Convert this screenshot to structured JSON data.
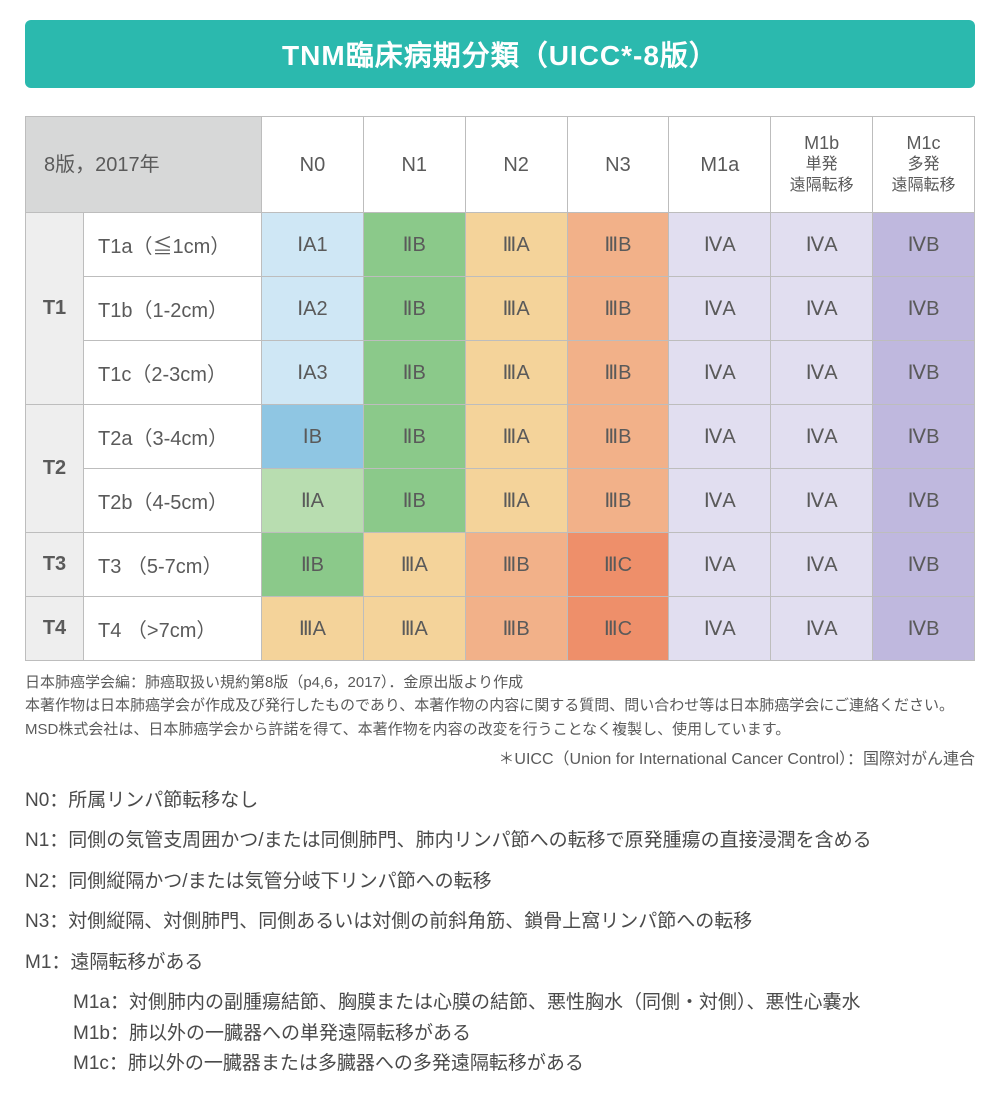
{
  "title": "TNM臨床病期分類（UICC*-8版）",
  "title_bg": "#2bb9ae",
  "corner_label": "8版，2017年",
  "columns": [
    {
      "key": "N0",
      "label": "N0",
      "sub": ""
    },
    {
      "key": "N1",
      "label": "N1",
      "sub": ""
    },
    {
      "key": "N2",
      "label": "N2",
      "sub": ""
    },
    {
      "key": "N3",
      "label": "N3",
      "sub": ""
    },
    {
      "key": "M1a",
      "label": "M1a",
      "sub": ""
    },
    {
      "key": "M1b",
      "label": "M1b",
      "sub": "単発\n遠隔転移"
    },
    {
      "key": "M1c",
      "label": "M1c",
      "sub": "多発\n遠隔転移"
    }
  ],
  "row_groups": [
    {
      "group": "T1",
      "rows": [
        {
          "label": "T1a（≦1cm）",
          "cells": [
            "ⅠA1",
            "ⅡB",
            "ⅢA",
            "ⅢB",
            "ⅣA",
            "ⅣA",
            "ⅣB"
          ]
        },
        {
          "label": "T1b（1-2cm）",
          "cells": [
            "ⅠA2",
            "ⅡB",
            "ⅢA",
            "ⅢB",
            "ⅣA",
            "ⅣA",
            "ⅣB"
          ]
        },
        {
          "label": "T1c（2-3cm）",
          "cells": [
            "ⅠA3",
            "ⅡB",
            "ⅢA",
            "ⅢB",
            "ⅣA",
            "ⅣA",
            "ⅣB"
          ]
        }
      ]
    },
    {
      "group": "T2",
      "rows": [
        {
          "label": "T2a（3-4cm）",
          "cells": [
            "ⅠB",
            "ⅡB",
            "ⅢA",
            "ⅢB",
            "ⅣA",
            "ⅣA",
            "ⅣB"
          ]
        },
        {
          "label": "T2b（4-5cm）",
          "cells": [
            "ⅡA",
            "ⅡB",
            "ⅢA",
            "ⅢB",
            "ⅣA",
            "ⅣA",
            "ⅣB"
          ]
        }
      ]
    },
    {
      "group": "T3",
      "rows": [
        {
          "label": "T3 （5-7cm）",
          "cells": [
            "ⅡB",
            "ⅢA",
            "ⅢB",
            "ⅢC",
            "ⅣA",
            "ⅣA",
            "ⅣB"
          ]
        }
      ]
    },
    {
      "group": "T4",
      "rows": [
        {
          "label": "T4 （>7cm）",
          "cells": [
            "ⅢA",
            "ⅢA",
            "ⅢB",
            "ⅢC",
            "ⅣA",
            "ⅣA",
            "ⅣB"
          ]
        }
      ]
    }
  ],
  "stage_colors": {
    "ⅠA1": "#cfe7f5",
    "ⅠA2": "#cfe7f5",
    "ⅠA3": "#cfe7f5",
    "ⅠB": "#8fc6e3",
    "ⅡA": "#b8ddb0",
    "ⅡB": "#8bc98a",
    "ⅢA": "#f4d39a",
    "ⅢB": "#f2b189",
    "ⅢC": "#ee8f6a",
    "ⅣA": "#e1def0",
    "ⅣB": "#bfb8de"
  },
  "text_color": "#5a5a5a",
  "border_color": "#bdbdbd",
  "source_note": "日本肺癌学会編：肺癌取扱い規約第8版（p4,6，2017）．金原出版より作成\n本著作物は日本肺癌学会が作成及び発行したものであり、本著作物の内容に関する質問、問い合わせ等は日本肺癌学会にご連絡ください。MSD株式会社は、日本肺癌学会から許諾を得て、本著作物を内容の改変を行うことなく複製し、使用しています。",
  "uicc_note": "＊UICC（Union for International Cancer Control）：国際対がん連合",
  "definitions": [
    {
      "label": "N0：",
      "text": "所属リンパ節転移なし"
    },
    {
      "label": "N1：",
      "text": "同側の気管支周囲かつ/または同側肺門、肺内リンパ節への転移で原発腫瘍の直接浸潤を含める"
    },
    {
      "label": "N2：",
      "text": "同側縦隔かつ/または気管分岐下リンパ節への転移"
    },
    {
      "label": "N3：",
      "text": "対側縦隔、対側肺門、同側あるいは対側の前斜角筋、鎖骨上窩リンパ節への転移"
    },
    {
      "label": "M1：",
      "text": "遠隔転移がある",
      "subs": [
        "M1a：対側肺内の副腫瘍結節、胸膜または心膜の結節、悪性胸水（同側・対側）、悪性心嚢水",
        "M1b：肺以外の一臓器への単発遠隔転移がある",
        "M1c：肺以外の一臓器または多臓器への多発遠隔転移がある"
      ]
    }
  ]
}
